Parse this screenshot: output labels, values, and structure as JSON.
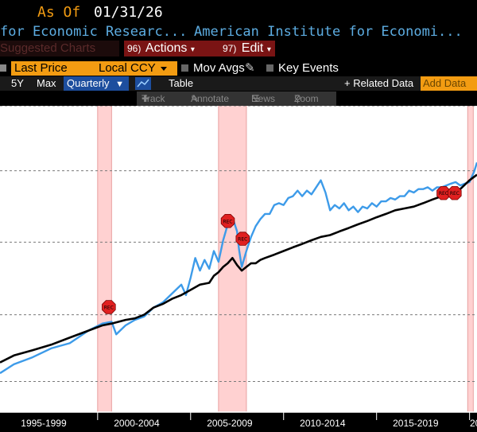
{
  "header": {
    "as_of_label": "As Of",
    "as_of_date": "01/31/26",
    "source_left": "for Economic Researc...",
    "source_right": "American Institute for Economi..."
  },
  "menu": {
    "suggested_charts": "Suggested Charts",
    "actions_num": "96)",
    "actions_label": "Actions",
    "edit_num": "97)",
    "edit_label": "Edit"
  },
  "controls": {
    "last_price": "Last Price",
    "currency": "Local CCY",
    "mov_avgs": "Mov Avgs",
    "key_events": "Key Events"
  },
  "range_bar": {
    "five_year": "5Y",
    "max": "Max",
    "frequency": "Quarterly",
    "table": "Table",
    "related_data": "+ Related Data",
    "add_data": "Add Data"
  },
  "toolbar": {
    "track": "Track",
    "annotate": "Annotate",
    "news": "News",
    "zoom": "Zoom"
  },
  "colors": {
    "series_a": "#3d9be9",
    "series_b": "#000000",
    "recession_band": "#ffc9c9",
    "event_marker": "#e02020",
    "orange": "#f39c12"
  },
  "chart_data": {
    "type": "line",
    "x_range": [
      1994.75,
      2020.4
    ],
    "y_range": [
      0,
      100
    ],
    "grid": "horizontal",
    "x_tick_labels": [
      {
        "label": "1995-1999",
        "center": 1997.1
      },
      {
        "label": "2000-2004",
        "center": 2002.1
      },
      {
        "label": "2005-2009",
        "center": 2007.1
      },
      {
        "label": "2010-2014",
        "center": 2012.1
      },
      {
        "label": "2015-2019",
        "center": 2017.1
      },
      {
        "label": "20",
        "center": 2020.3
      }
    ],
    "recessions": [
      {
        "start": 2000.0,
        "end": 2000.75
      },
      {
        "start": 2006.5,
        "end": 2008.0
      },
      {
        "start": 2019.9,
        "end": 2020.2
      }
    ],
    "event_markers": [
      {
        "label": "REC",
        "x": 2000.6,
        "y": 34.3
      },
      {
        "label": "REC",
        "x": 2007.0,
        "y": 62.4
      },
      {
        "label": "REC",
        "x": 2007.8,
        "y": 56.6
      },
      {
        "label": "REC",
        "x": 2018.6,
        "y": 71.5
      },
      {
        "label": "REC",
        "x": 2019.2,
        "y": 71.5
      }
    ],
    "series": [
      {
        "points": [
          [
            1994.75,
            12.7
          ],
          [
            1995.5,
            15.6
          ],
          [
            1996.5,
            17.9
          ],
          [
            1997.5,
            20.8
          ],
          [
            1998.5,
            22.5
          ],
          [
            1999.5,
            26.6
          ],
          [
            2000.25,
            28.9
          ],
          [
            2000.75,
            29.5
          ],
          [
            2001.0,
            25.4
          ],
          [
            2001.5,
            28.3
          ],
          [
            2002.0,
            30.1
          ],
          [
            2002.5,
            31.2
          ],
          [
            2003.0,
            34.1
          ],
          [
            2003.5,
            35.8
          ],
          [
            2004.0,
            38.7
          ],
          [
            2004.5,
            41.6
          ],
          [
            2004.75,
            38.2
          ],
          [
            2005.0,
            43.9
          ],
          [
            2005.25,
            50.3
          ],
          [
            2005.5,
            46.2
          ],
          [
            2005.75,
            49.7
          ],
          [
            2006.0,
            46.8
          ],
          [
            2006.25,
            52.6
          ],
          [
            2006.5,
            49.1
          ],
          [
            2006.75,
            56.1
          ],
          [
            2007.0,
            61.3
          ],
          [
            2007.25,
            63.6
          ],
          [
            2007.5,
            59.0
          ],
          [
            2007.6,
            53.2
          ],
          [
            2007.75,
            47.4
          ],
          [
            2008.0,
            52.6
          ],
          [
            2008.25,
            57.2
          ],
          [
            2008.5,
            60.7
          ],
          [
            2008.75,
            63.0
          ],
          [
            2009.0,
            64.7
          ],
          [
            2009.25,
            64.7
          ],
          [
            2009.5,
            67.6
          ],
          [
            2009.75,
            68.2
          ],
          [
            2010.0,
            67.6
          ],
          [
            2010.25,
            69.9
          ],
          [
            2010.5,
            70.5
          ],
          [
            2010.75,
            72.3
          ],
          [
            2011.0,
            70.5
          ],
          [
            2011.25,
            72.3
          ],
          [
            2011.5,
            71.1
          ],
          [
            2011.75,
            73.4
          ],
          [
            2012.0,
            75.7
          ],
          [
            2012.25,
            71.7
          ],
          [
            2012.5,
            65.9
          ],
          [
            2012.75,
            67.6
          ],
          [
            2013.0,
            66.5
          ],
          [
            2013.25,
            68.2
          ],
          [
            2013.5,
            65.9
          ],
          [
            2013.75,
            67.1
          ],
          [
            2014.0,
            65.3
          ],
          [
            2014.25,
            67.1
          ],
          [
            2014.5,
            66.5
          ],
          [
            2014.75,
            68.2
          ],
          [
            2015.0,
            67.1
          ],
          [
            2015.25,
            68.8
          ],
          [
            2015.5,
            68.8
          ],
          [
            2015.75,
            69.9
          ],
          [
            2016.0,
            69.4
          ],
          [
            2016.25,
            70.5
          ],
          [
            2016.5,
            70.5
          ],
          [
            2016.75,
            72.3
          ],
          [
            2017.0,
            71.7
          ],
          [
            2017.25,
            72.8
          ],
          [
            2017.5,
            72.8
          ],
          [
            2017.75,
            73.4
          ],
          [
            2018.0,
            72.3
          ],
          [
            2018.25,
            73.4
          ],
          [
            2018.5,
            73.4
          ],
          [
            2018.75,
            74.0
          ],
          [
            2019.0,
            74.6
          ],
          [
            2019.25,
            75.1
          ],
          [
            2019.5,
            74.0
          ],
          [
            2019.75,
            74.6
          ],
          [
            2020.0,
            75.1
          ],
          [
            2020.25,
            78.6
          ],
          [
            2020.4,
            81.5
          ]
        ]
      },
      {
        "points": [
          [
            1994.75,
            16.2
          ],
          [
            1995.5,
            18.5
          ],
          [
            1996.5,
            20.2
          ],
          [
            1997.5,
            22.0
          ],
          [
            1998.5,
            24.3
          ],
          [
            1999.5,
            26.6
          ],
          [
            2000.25,
            28.3
          ],
          [
            2000.75,
            28.9
          ],
          [
            2001.5,
            30.1
          ],
          [
            2002.0,
            30.6
          ],
          [
            2002.5,
            31.8
          ],
          [
            2003.0,
            34.1
          ],
          [
            2003.5,
            35.3
          ],
          [
            2004.0,
            37.0
          ],
          [
            2004.5,
            38.2
          ],
          [
            2005.0,
            39.9
          ],
          [
            2005.5,
            41.6
          ],
          [
            2006.0,
            42.2
          ],
          [
            2006.25,
            44.5
          ],
          [
            2006.5,
            45.7
          ],
          [
            2006.75,
            47.4
          ],
          [
            2007.0,
            48.6
          ],
          [
            2007.25,
            50.3
          ],
          [
            2007.5,
            48.0
          ],
          [
            2007.75,
            46.2
          ],
          [
            2008.0,
            47.4
          ],
          [
            2008.25,
            48.6
          ],
          [
            2008.5,
            48.6
          ],
          [
            2008.75,
            49.7
          ],
          [
            2009.0,
            50.3
          ],
          [
            2009.5,
            51.4
          ],
          [
            2010.0,
            52.6
          ],
          [
            2010.5,
            53.8
          ],
          [
            2011.0,
            54.9
          ],
          [
            2011.5,
            56.1
          ],
          [
            2012.0,
            57.2
          ],
          [
            2012.5,
            57.8
          ],
          [
            2013.0,
            59.0
          ],
          [
            2013.5,
            60.1
          ],
          [
            2014.0,
            61.3
          ],
          [
            2014.5,
            62.4
          ],
          [
            2015.0,
            63.6
          ],
          [
            2015.5,
            64.7
          ],
          [
            2016.0,
            65.9
          ],
          [
            2016.5,
            66.5
          ],
          [
            2017.0,
            67.1
          ],
          [
            2017.5,
            68.2
          ],
          [
            2018.0,
            69.4
          ],
          [
            2018.5,
            70.5
          ],
          [
            2019.0,
            71.1
          ],
          [
            2019.5,
            72.8
          ],
          [
            2020.0,
            75.7
          ],
          [
            2020.4,
            77.5
          ]
        ]
      }
    ]
  }
}
